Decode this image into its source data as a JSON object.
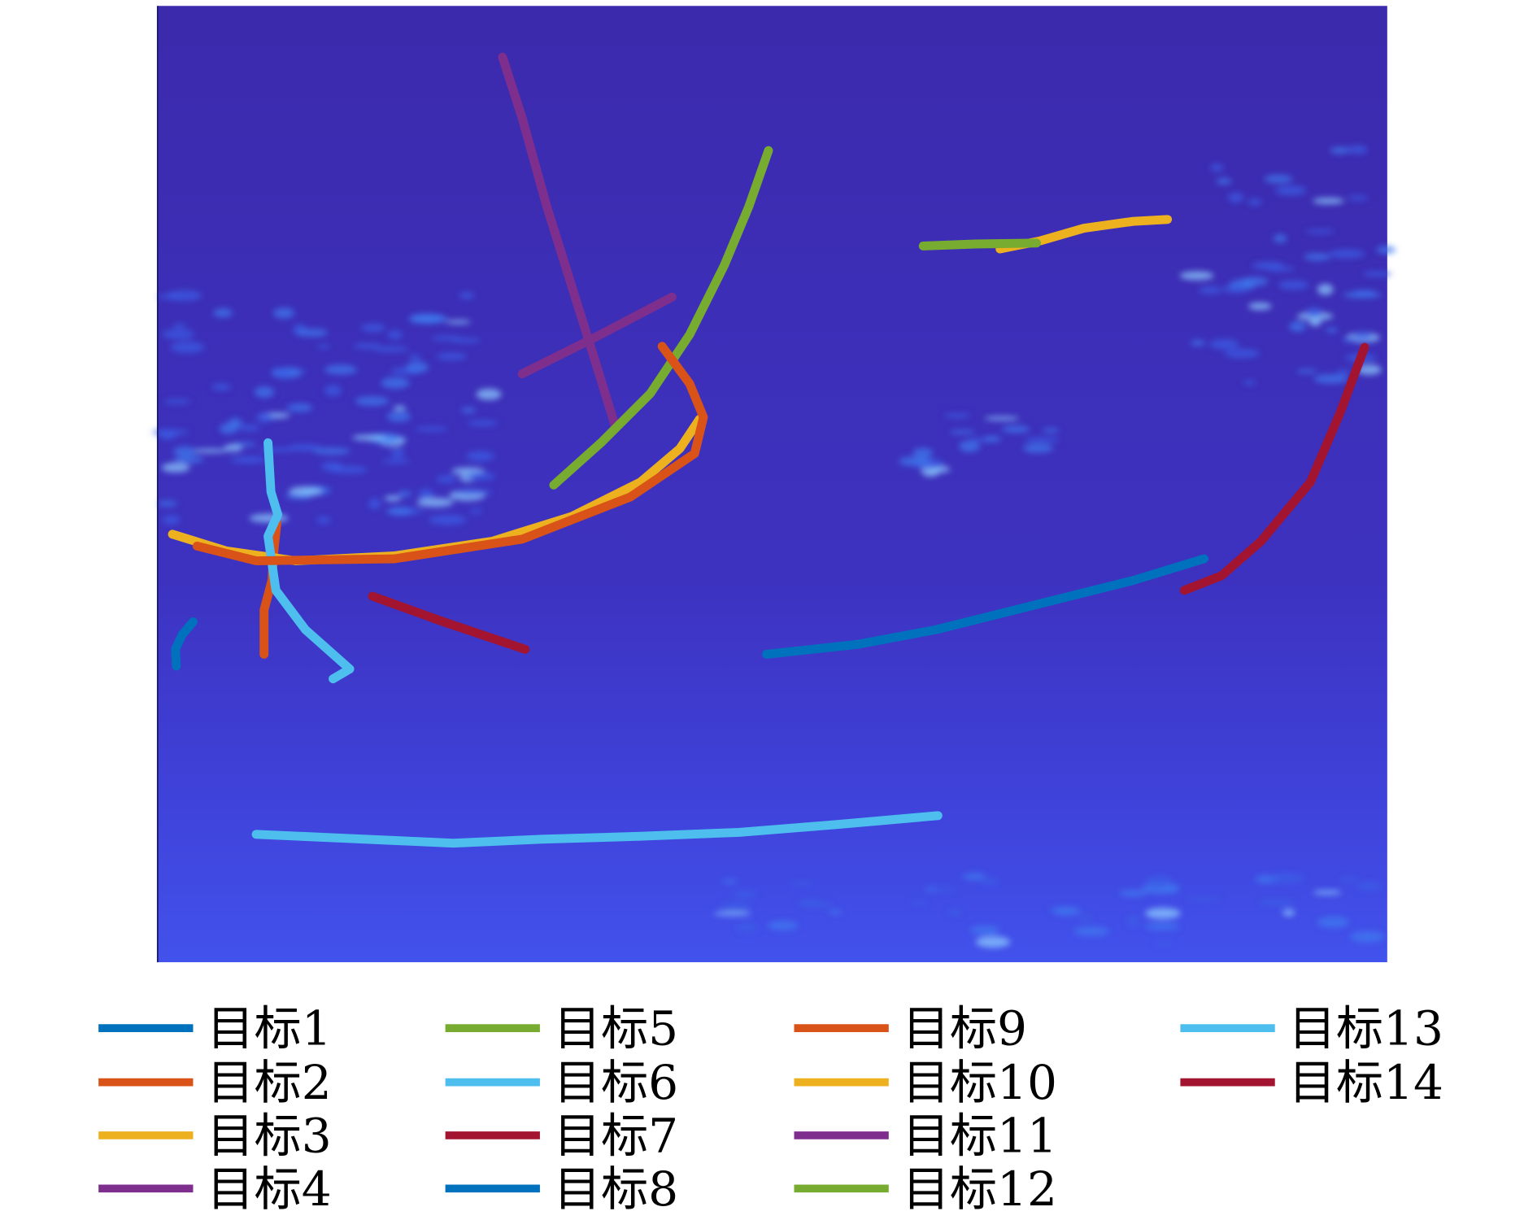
{
  "chart_data": {
    "type": "line",
    "title": "",
    "xlabel": "",
    "ylabel": "",
    "xlim": [
      0,
      1248
    ],
    "ylim": [
      0,
      972
    ],
    "y_inverted": true,
    "grid": false,
    "axes_visible": false,
    "background": "heatmap (parula colormap, mostly dark blue with scattered bright clutter)",
    "legend": {
      "placement": "bottom",
      "columns": 4
    },
    "series": [
      {
        "name": "目标1",
        "color": "#0072BD",
        "points": [
          [
            36,
            626
          ],
          [
            25,
            639
          ],
          [
            18,
            654
          ],
          [
            19,
            671
          ]
        ]
      },
      {
        "name": "目标2",
        "color": "#D95319",
        "points": [
          [
            121,
            526
          ],
          [
            118,
            554
          ],
          [
            116,
            584
          ],
          [
            108,
            614
          ],
          [
            108,
            659
          ]
        ]
      },
      {
        "name": "目标3",
        "color": "#EDB120",
        "points": [
          [
            15,
            537
          ],
          [
            70,
            554
          ],
          [
            140,
            564
          ],
          [
            240,
            559
          ],
          [
            340,
            544
          ],
          [
            420,
            519
          ],
          [
            490,
            484
          ],
          [
            530,
            450
          ],
          [
            550,
            420
          ]
        ]
      },
      {
        "name": "目标4",
        "color": "#7E2F8E",
        "points": [
          [
            350,
            52
          ],
          [
            370,
            114
          ],
          [
            395,
            204
          ],
          [
            420,
            284
          ],
          [
            445,
            364
          ],
          [
            465,
            429
          ]
        ]
      },
      {
        "name": "目标5",
        "color": "#77AC30",
        "points": [
          [
            620,
            147
          ],
          [
            600,
            204
          ],
          [
            575,
            264
          ],
          [
            540,
            334
          ],
          [
            500,
            394
          ],
          [
            450,
            444
          ],
          [
            402,
            487
          ]
        ]
      },
      {
        "name": "目标6",
        "color": "#4DBEEE",
        "points": [
          [
            112,
            444
          ],
          [
            115,
            494
          ],
          [
            122,
            517
          ],
          [
            112,
            539
          ],
          [
            120,
            594
          ],
          [
            150,
            634
          ],
          [
            195,
            674
          ],
          [
            178,
            684
          ]
        ]
      },
      {
        "name": "目标7",
        "color": "#A2142F",
        "points": [
          [
            218,
            600
          ],
          [
            290,
            626
          ],
          [
            373,
            654
          ]
        ]
      },
      {
        "name": "目标8",
        "color": "#0072BD",
        "points": [
          [
            618,
            659
          ],
          [
            710,
            649
          ],
          [
            790,
            634
          ],
          [
            890,
            609
          ],
          [
            990,
            584
          ],
          [
            1062,
            562
          ]
        ]
      },
      {
        "name": "目标9",
        "color": "#D95319",
        "points": [
          [
            512,
            346
          ],
          [
            540,
            384
          ],
          [
            554,
            418
          ],
          [
            545,
            455
          ],
          [
            480,
            499
          ],
          [
            370,
            542
          ],
          [
            240,
            562
          ],
          [
            100,
            564
          ],
          [
            40,
            549
          ]
        ]
      },
      {
        "name": "目标10",
        "color": "#EDB120",
        "points": [
          [
            855,
            247
          ],
          [
            895,
            239
          ],
          [
            940,
            226
          ],
          [
            990,
            219
          ],
          [
            1025,
            217
          ]
        ]
      },
      {
        "name": "目标11",
        "color": "#7E2F8E",
        "points": [
          [
            370,
            374
          ],
          [
            440,
            339
          ],
          [
            522,
            296
          ]
        ]
      },
      {
        "name": "目标12",
        "color": "#77AC30",
        "points": [
          [
            777,
            244
          ],
          [
            830,
            242
          ],
          [
            892,
            241
          ]
        ]
      },
      {
        "name": "目标13",
        "color": "#4DBEEE",
        "points": [
          [
            100,
            842
          ],
          [
            190,
            846
          ],
          [
            300,
            851
          ],
          [
            390,
            847
          ],
          [
            490,
            844
          ],
          [
            590,
            840
          ],
          [
            690,
            832
          ],
          [
            792,
            823
          ]
        ]
      },
      {
        "name": "目标14",
        "color": "#A2142F",
        "points": [
          [
            1225,
            347
          ],
          [
            1200,
            414
          ],
          [
            1170,
            484
          ],
          [
            1120,
            544
          ],
          [
            1080,
            579
          ],
          [
            1042,
            594
          ]
        ]
      }
    ]
  }
}
